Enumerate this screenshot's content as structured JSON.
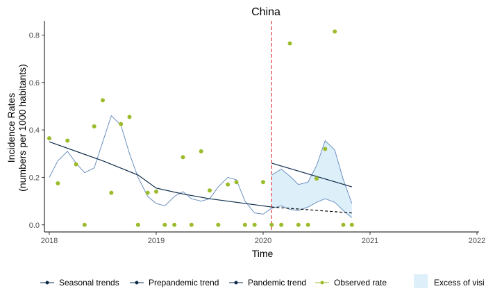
{
  "chart_data": {
    "type": "line",
    "title": "China",
    "xlabel": "Time",
    "ylabel_line1": "Incidence Rates",
    "ylabel_line2": "(numbers per 1000 habitants)",
    "xlim": [
      2018,
      2022
    ],
    "ylim": [
      -0.03,
      0.86
    ],
    "x_ticks": [
      "2018",
      "2019",
      "2020",
      "2021",
      "2022"
    ],
    "y_ticks": [
      "0.0",
      "0.2",
      "0.4",
      "0.6",
      "0.8"
    ],
    "pandemic_start": 2020.08,
    "series": [
      {
        "name": "Seasonal trends",
        "color": "#6a8fbf",
        "x": [
          2018.0,
          2018.08,
          2018.17,
          2018.25,
          2018.33,
          2018.42,
          2018.5,
          2018.58,
          2018.67,
          2018.75,
          2018.83,
          2018.92,
          2019.0,
          2019.08,
          2019.17,
          2019.25,
          2019.33,
          2019.42,
          2019.5,
          2019.58,
          2019.67,
          2019.75,
          2019.83,
          2019.92,
          2020.0,
          2020.08
        ],
        "y": [
          0.2,
          0.27,
          0.31,
          0.26,
          0.22,
          0.24,
          0.35,
          0.46,
          0.42,
          0.3,
          0.2,
          0.12,
          0.09,
          0.08,
          0.12,
          0.14,
          0.11,
          0.1,
          0.11,
          0.16,
          0.2,
          0.19,
          0.1,
          0.05,
          0.045,
          0.07
        ]
      },
      {
        "name": "Prepandemic trend",
        "color": "#0b2a4a",
        "x": [
          2018.0,
          2018.5,
          2018.83,
          2019.0,
          2019.25,
          2019.5,
          2019.75,
          2020.0,
          2020.08
        ],
        "y": [
          0.35,
          0.27,
          0.21,
          0.155,
          0.13,
          0.11,
          0.095,
          0.08,
          0.075
        ],
        "projection_x": [
          2020.08,
          2020.83
        ],
        "projection_y": [
          0.075,
          0.05
        ]
      },
      {
        "name": "Pandemic trend",
        "color": "#0b2a4a",
        "x": [
          2020.08,
          2020.83
        ],
        "y": [
          0.26,
          0.16
        ]
      },
      {
        "name": "Observed rate",
        "color": "#9bbb2a",
        "x": [
          2018.0,
          2018.08,
          2018.17,
          2018.25,
          2018.33,
          2018.42,
          2018.5,
          2018.58,
          2018.67,
          2018.75,
          2018.83,
          2018.92,
          2019.0,
          2019.08,
          2019.17,
          2019.25,
          2019.33,
          2019.42,
          2019.5,
          2019.58,
          2019.67,
          2019.75,
          2019.83,
          2019.92,
          2020.0,
          2020.08,
          2020.17,
          2020.25,
          2020.33,
          2020.42,
          2020.5,
          2020.58,
          2020.67,
          2020.75,
          2020.83
        ],
        "y": [
          0.365,
          0.175,
          0.355,
          0.255,
          0.0,
          0.415,
          0.525,
          0.135,
          0.425,
          0.455,
          0.0,
          0.135,
          0.14,
          0.0,
          0.0,
          0.285,
          0.0,
          0.31,
          0.145,
          0.0,
          0.17,
          0.18,
          0.0,
          0.0,
          0.18,
          0.0,
          0.0,
          0.765,
          0.0,
          0.0,
          0.195,
          0.32,
          0.815,
          0.0,
          0.0
        ]
      }
    ],
    "excess_band": {
      "name": "Excess of visi",
      "color": "#ddf0fa",
      "x": [
        2020.08,
        2020.17,
        2020.25,
        2020.33,
        2020.42,
        2020.5,
        2020.58,
        2020.67,
        2020.75,
        2020.83
      ],
      "upper": [
        0.21,
        0.235,
        0.205,
        0.17,
        0.18,
        0.25,
        0.355,
        0.315,
        0.19,
        0.09
      ],
      "lower": [
        0.07,
        0.08,
        0.065,
        0.06,
        0.075,
        0.095,
        0.11,
        0.095,
        0.06,
        0.03
      ]
    },
    "legend_position": "bottom"
  }
}
